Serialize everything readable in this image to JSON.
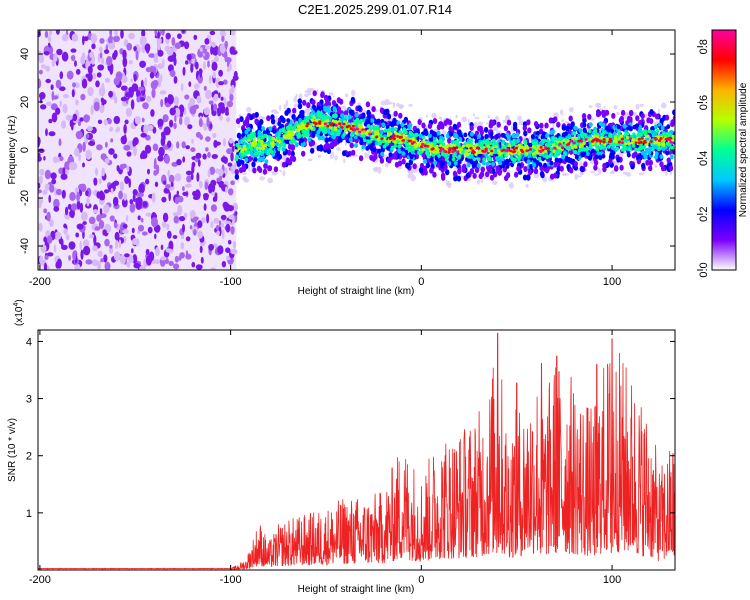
{
  "title": "C2E1.2025.299.01.07.R14",
  "chart_data": [
    {
      "type": "heatmap",
      "name": "spectrogram",
      "xlabel": "Height of straight line (km)",
      "ylabel": "Frequency (Hz)",
      "xlim": [
        -201,
        133
      ],
      "ylim": [
        -50,
        50
      ],
      "xticks": [
        -200,
        -100,
        0,
        100
      ],
      "yticks": [
        -40,
        -20,
        0,
        20,
        40
      ],
      "noise_region_x": [
        -201,
        -97
      ],
      "signal_start_x": -97,
      "ridge_center_hz": [
        [
          -97,
          0
        ],
        [
          -90,
          3
        ],
        [
          -80,
          2
        ],
        [
          -70,
          6
        ],
        [
          -60,
          10
        ],
        [
          -55,
          12
        ],
        [
          -50,
          11
        ],
        [
          -40,
          10
        ],
        [
          -30,
          8
        ],
        [
          -20,
          5
        ],
        [
          -10,
          5
        ],
        [
          0,
          2
        ],
        [
          10,
          0
        ],
        [
          20,
          0
        ],
        [
          30,
          0
        ],
        [
          40,
          0
        ],
        [
          50,
          0
        ],
        [
          60,
          0
        ],
        [
          70,
          1
        ],
        [
          80,
          3
        ],
        [
          90,
          4
        ],
        [
          100,
          4
        ],
        [
          110,
          4
        ],
        [
          120,
          4
        ],
        [
          133,
          4
        ]
      ],
      "colorbar": {
        "label": "Normalized spectral amplitude",
        "min": 0.0,
        "max": 0.86,
        "ticks": [
          "0.0",
          "0.2",
          "0.4",
          "0.6",
          "0.8"
        ],
        "tick_values": [
          0.0,
          0.2,
          0.4,
          0.6,
          0.8
        ],
        "colors": [
          "#ffffff",
          "#7a00ff",
          "#0000ff",
          "#00c8ff",
          "#00ff96",
          "#b4ff00",
          "#ffb400",
          "#ff0000",
          "#ff00a0"
        ]
      }
    },
    {
      "type": "line",
      "name": "snr",
      "xlabel": "Height of straight line (km)",
      "ylabel": "SNR (10 * v/v)",
      "exponent_label": "(x10",
      "exponent_power": "4",
      "exponent_close": ")",
      "xlim": [
        -201,
        133
      ],
      "ylim": [
        0,
        4.2
      ],
      "xticks": [
        -200,
        -100,
        0,
        100
      ],
      "yticks": [
        1,
        2,
        3,
        4
      ],
      "color": "#ee2222",
      "envelope": [
        [
          -201,
          0.02
        ],
        [
          -100,
          0.02
        ],
        [
          -92,
          0.2
        ],
        [
          -85,
          0.9
        ],
        [
          -80,
          0.5
        ],
        [
          -75,
          0.8
        ],
        [
          -70,
          0.9
        ],
        [
          -60,
          1.0
        ],
        [
          -50,
          1.1
        ],
        [
          -40,
          1.3
        ],
        [
          -30,
          1.3
        ],
        [
          -20,
          1.4
        ],
        [
          -10,
          2.3
        ],
        [
          0,
          1.7
        ],
        [
          10,
          2.4
        ],
        [
          20,
          2.5
        ],
        [
          30,
          2.8
        ],
        [
          35,
          3.2
        ],
        [
          40,
          4.1
        ],
        [
          45,
          2.6
        ],
        [
          55,
          3.1
        ],
        [
          60,
          3.6
        ],
        [
          65,
          3.0
        ],
        [
          70,
          3.8
        ],
        [
          80,
          3.4
        ],
        [
          90,
          2.8
        ],
        [
          95,
          3.6
        ],
        [
          100,
          4.1
        ],
        [
          110,
          3.5
        ],
        [
          120,
          2.7
        ],
        [
          125,
          1.8
        ],
        [
          133,
          2.4
        ]
      ],
      "peaks": [
        [
          40,
          4.15
        ],
        [
          100,
          4.05
        ],
        [
          63,
          3.62
        ],
        [
          92,
          3.6
        ],
        [
          71,
          3.75
        ],
        [
          50,
          3.28
        ]
      ]
    }
  ]
}
